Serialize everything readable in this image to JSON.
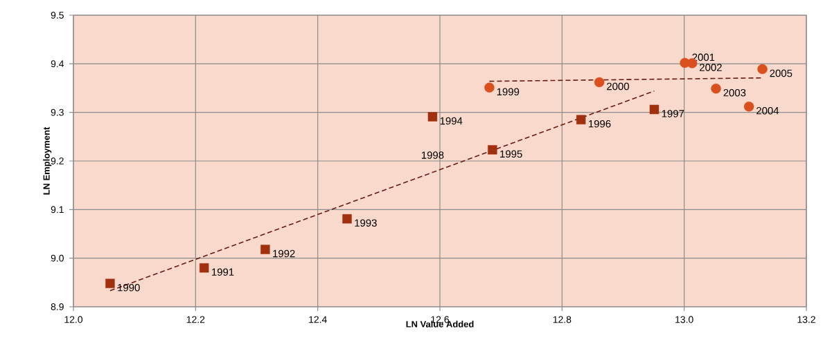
{
  "chart_data": {
    "type": "scatter",
    "xlabel": "LN Value Added",
    "ylabel": "LN Employment",
    "xlim": [
      12.0,
      13.2
    ],
    "ylim": [
      8.9,
      9.5
    ],
    "xticks": [
      {
        "value": 12.0,
        "label": "12.0"
      },
      {
        "value": 12.2,
        "label": "12.2"
      },
      {
        "value": 12.4,
        "label": "12.4"
      },
      {
        "value": 12.6,
        "label": "12.6"
      },
      {
        "value": 12.8,
        "label": "12.8"
      },
      {
        "value": 13.0,
        "label": "13.0"
      },
      {
        "value": 13.2,
        "label": "13.2"
      }
    ],
    "yticks": [
      {
        "value": 8.9,
        "label": "8.9"
      },
      {
        "value": 9.0,
        "label": "9.0"
      },
      {
        "value": 9.1,
        "label": "9.1"
      },
      {
        "value": 9.2,
        "label": "9.2"
      },
      {
        "value": 9.3,
        "label": "9.3"
      },
      {
        "value": 9.4,
        "label": "9.4"
      },
      {
        "value": 9.5,
        "label": "9.5"
      }
    ],
    "grid": true,
    "series": [
      {
        "color": "#a0300e",
        "marker": "square",
        "x": [
          12.06,
          12.214,
          12.314,
          12.448,
          12.588,
          12.686,
          12.831,
          12.951
        ],
        "values": [
          8.948,
          8.98,
          9.018,
          9.081,
          9.291,
          9.223,
          9.285,
          9.306
        ]
      },
      {
        "color": "#d9501e",
        "marker": "circle",
        "x": [
          12.681,
          12.861,
          13.001,
          13.013,
          13.052,
          13.106,
          13.128
        ],
        "values": [
          9.351,
          9.362,
          9.402,
          9.401,
          9.349,
          9.312,
          9.389
        ]
      },
      {
        "type": "line",
        "color": "#6b1a10",
        "line_style": "dashed",
        "marker": "none",
        "x": [
          12.06,
          12.951
        ],
        "values": [
          8.933,
          9.344
        ]
      },
      {
        "type": "line",
        "color": "#6b1a10",
        "line_style": "dashed",
        "marker": "none",
        "x": [
          12.681,
          13.128
        ],
        "values": [
          9.364,
          9.371
        ]
      }
    ],
    "annotations": [
      {
        "text": "1990",
        "x": 12.06,
        "y": 8.948
      },
      {
        "text": "1991",
        "x": 12.214,
        "y": 8.98
      },
      {
        "text": "1992",
        "x": 12.314,
        "y": 9.018
      },
      {
        "text": "1993",
        "x": 12.448,
        "y": 9.081
      },
      {
        "text": "1994",
        "x": 12.588,
        "y": 9.291
      },
      {
        "text": "1995",
        "x": 12.686,
        "y": 9.223
      },
      {
        "text": "1996",
        "x": 12.831,
        "y": 9.285
      },
      {
        "text": "1997",
        "x": 12.951,
        "y": 9.306
      },
      "1998",
      {
        "text": "1999",
        "x": 12.681,
        "y": 9.351
      },
      {
        "text": "2000",
        "x": 12.861,
        "y": 9.362
      },
      {
        "text": "2001",
        "x": 13.001,
        "y": 9.402
      },
      {
        "text": "2002",
        "x": 13.013,
        "y": 9.401
      },
      {
        "text": "2003",
        "x": 13.052,
        "y": 9.349
      },
      {
        "text": "2004",
        "x": 13.106,
        "y": 9.312
      },
      {
        "text": "2005",
        "x": 13.128,
        "y": 9.389
      }
    ]
  }
}
